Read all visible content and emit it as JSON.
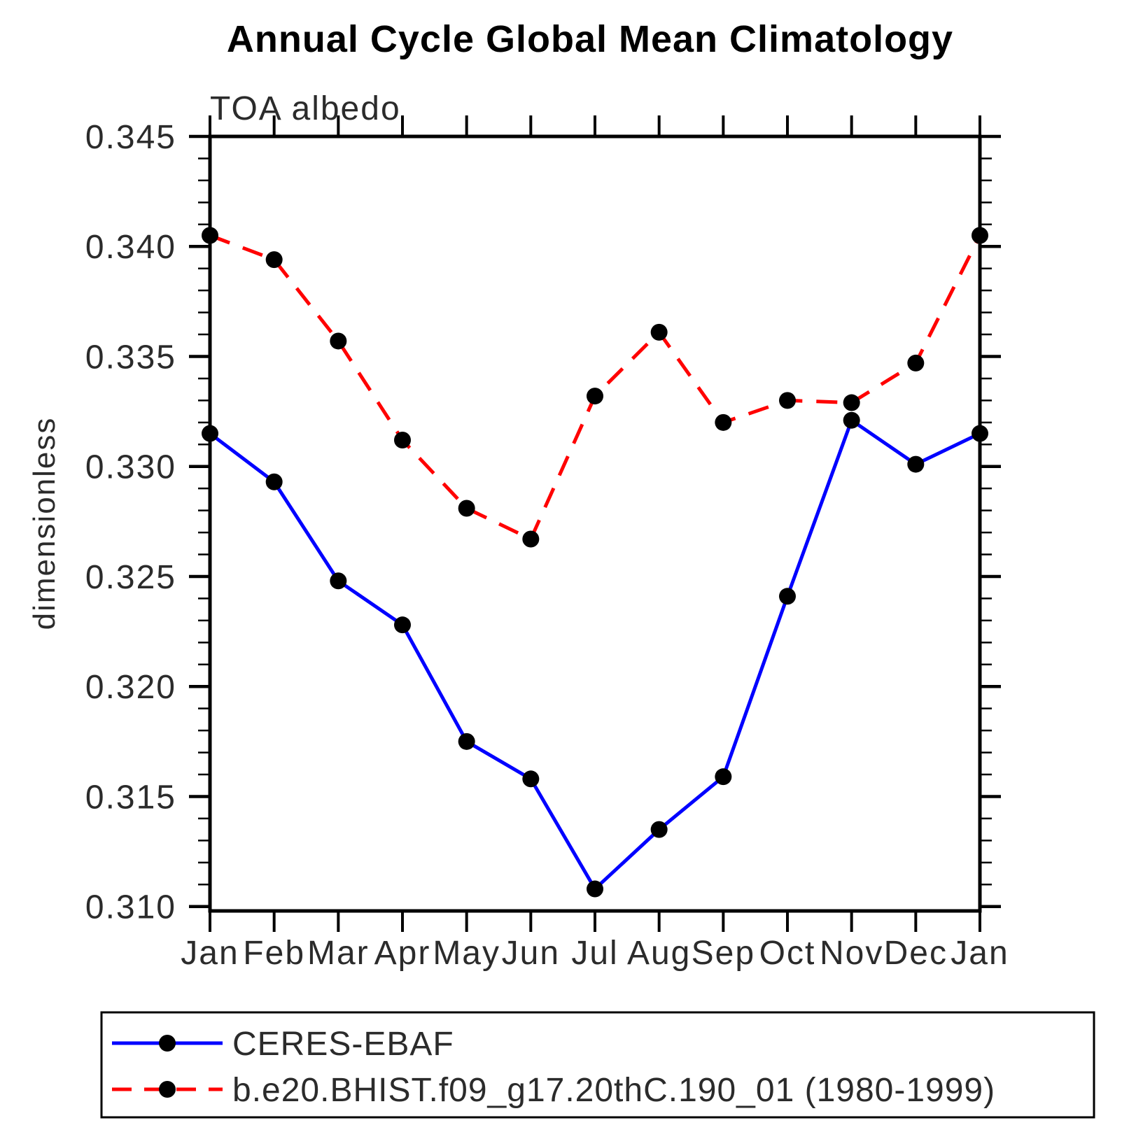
{
  "title": "Annual Cycle Global Mean Climatology",
  "subtitle": "TOA albedo",
  "ylabel": "dimensionless",
  "colors": {
    "obs_line": "#0000ff",
    "model_line": "#ff0000",
    "marker": "#000000",
    "axis": "#000000",
    "text": "#2b2b2b",
    "background": "#ffffff"
  },
  "legend": {
    "entries": [
      {
        "label": "CERES-EBAF",
        "line_style": "solid",
        "color": "#0000ff"
      },
      {
        "label": "b.e20.BHIST.f09_g17.20thC.190_01 (1980-1999)",
        "line_style": "dashed",
        "color": "#ff0000"
      }
    ]
  },
  "chart_data": {
    "type": "line",
    "title": "Annual Cycle Global Mean Climatology",
    "subtitle": "TOA albedo",
    "xlabel": "",
    "ylabel": "dimensionless",
    "categories": [
      "Jan",
      "Feb",
      "Mar",
      "Apr",
      "May",
      "Jun",
      "Jul",
      "Aug",
      "Sep",
      "Oct",
      "Nov",
      "Dec",
      "Jan"
    ],
    "ylim": [
      0.3098,
      0.345
    ],
    "yticks_major": [
      0.31,
      0.315,
      0.32,
      0.325,
      0.33,
      0.335,
      0.34,
      0.345
    ],
    "ytick_labels": [
      "0.310",
      "0.315",
      "0.320",
      "0.325",
      "0.330",
      "0.335",
      "0.340",
      "0.345"
    ],
    "yminor_step": 0.001,
    "grid": false,
    "legend_position": "bottom-box",
    "series": [
      {
        "name": "CERES-EBAF",
        "style": "solid",
        "color": "#0000ff",
        "marker": "filled-circle",
        "values": [
          0.3315,
          0.3293,
          0.3248,
          0.3228,
          0.3175,
          0.3158,
          0.3108,
          0.3135,
          0.3159,
          0.3241,
          0.3321,
          0.3301,
          0.3315
        ]
      },
      {
        "name": "b.e20.BHIST.f09_g17.20thC.190_01 (1980-1999)",
        "style": "dashed",
        "color": "#ff0000",
        "marker": "filled-circle",
        "values": [
          0.3405,
          0.3394,
          0.3357,
          0.3312,
          0.3281,
          0.3267,
          0.3332,
          0.3361,
          0.332,
          0.333,
          0.3329,
          0.3347,
          0.3405
        ]
      }
    ]
  }
}
